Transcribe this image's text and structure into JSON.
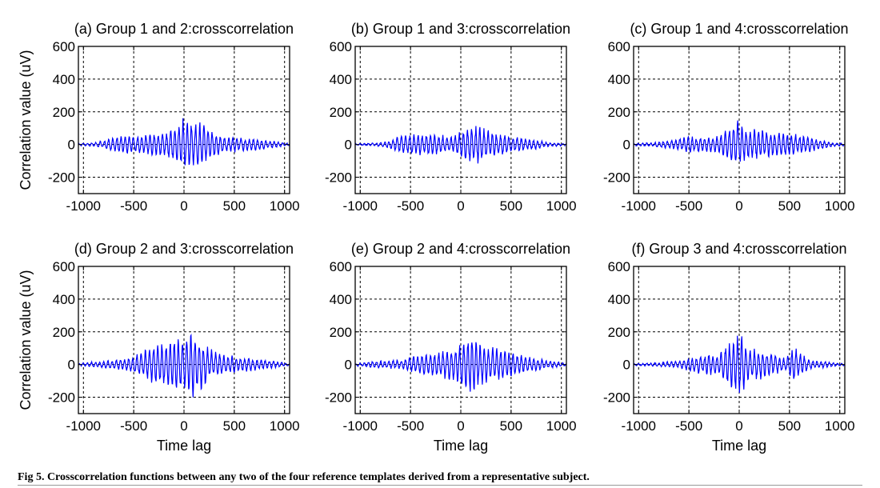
{
  "caption": "Fig 5.  Crosscorrelation functions between any two of the four reference templates derived from a representative subject.",
  "colors": {
    "trace": "#0000ff",
    "axis": "#000000",
    "grid": "#000000"
  },
  "chart_data": [
    {
      "type": "line",
      "title": "(a) Group 1 and 2:crosscorrelation",
      "xlabel": "",
      "ylabel": "Correlation value (uV)",
      "xlim": [
        -1050,
        1050
      ],
      "ylim": [
        -300,
        600
      ],
      "xticks": [
        -1000,
        -500,
        0,
        500,
        1000
      ],
      "yticks": [
        -200,
        0,
        200,
        400,
        600
      ],
      "grid": true,
      "seed": 11,
      "envelope": [
        [
          -1050,
          5
        ],
        [
          -900,
          10
        ],
        [
          -800,
          25
        ],
        [
          -650,
          55
        ],
        [
          -400,
          60
        ],
        [
          -200,
          70
        ],
        [
          -50,
          130
        ],
        [
          0,
          180
        ],
        [
          50,
          150
        ],
        [
          200,
          130
        ],
        [
          350,
          60
        ],
        [
          500,
          45
        ],
        [
          700,
          40
        ],
        [
          900,
          20
        ],
        [
          1050,
          5
        ]
      ]
    },
    {
      "type": "line",
      "title": "(b) Group 1 and 3:crosscorrelation",
      "xlabel": "",
      "ylabel": "",
      "xlim": [
        -1050,
        1050
      ],
      "ylim": [
        -300,
        600
      ],
      "xticks": [
        -1000,
        -500,
        0,
        500,
        1000
      ],
      "yticks": [
        -200,
        0,
        200,
        400,
        600
      ],
      "grid": true,
      "seed": 23,
      "envelope": [
        [
          -1050,
          5
        ],
        [
          -850,
          10
        ],
        [
          -700,
          25
        ],
        [
          -600,
          60
        ],
        [
          -300,
          70
        ],
        [
          -100,
          50
        ],
        [
          100,
          110
        ],
        [
          150,
          130
        ],
        [
          300,
          80
        ],
        [
          500,
          55
        ],
        [
          700,
          35
        ],
        [
          900,
          10
        ],
        [
          1050,
          5
        ]
      ]
    },
    {
      "type": "line",
      "title": "(c) Group 1 and 4:crosscorrelation",
      "xlabel": "",
      "ylabel": "",
      "xlim": [
        -1050,
        1050
      ],
      "ylim": [
        -300,
        600
      ],
      "xticks": [
        -1000,
        -500,
        0,
        500,
        1000
      ],
      "yticks": [
        -200,
        0,
        200,
        400,
        600
      ],
      "grid": true,
      "seed": 37,
      "envelope": [
        [
          -1050,
          5
        ],
        [
          -900,
          10
        ],
        [
          -700,
          25
        ],
        [
          -500,
          50
        ],
        [
          -200,
          50
        ],
        [
          -20,
          150
        ],
        [
          50,
          110
        ],
        [
          250,
          90
        ],
        [
          500,
          75
        ],
        [
          700,
          50
        ],
        [
          900,
          15
        ],
        [
          1050,
          5
        ]
      ]
    },
    {
      "type": "line",
      "title": "(d) Group 2 and 3:crosscorrelation",
      "xlabel": "Time lag",
      "ylabel": "Correlation value (uV)",
      "xlim": [
        -1050,
        1050
      ],
      "ylim": [
        -300,
        600
      ],
      "xticks": [
        -1000,
        -500,
        0,
        500,
        1000
      ],
      "yticks": [
        -200,
        0,
        200,
        400,
        600
      ],
      "grid": true,
      "seed": 41,
      "envelope": [
        [
          -1050,
          5
        ],
        [
          -850,
          20
        ],
        [
          -600,
          35
        ],
        [
          -450,
          70
        ],
        [
          -300,
          120
        ],
        [
          -100,
          160
        ],
        [
          50,
          190
        ],
        [
          100,
          210
        ],
        [
          250,
          100
        ],
        [
          400,
          60
        ],
        [
          600,
          45
        ],
        [
          800,
          30
        ],
        [
          1050,
          5
        ]
      ]
    },
    {
      "type": "line",
      "title": "(e) Group 2 and 4:crosscorrelation",
      "xlabel": "Time lag",
      "ylabel": "",
      "xlim": [
        -1050,
        1050
      ],
      "ylim": [
        -300,
        600
      ],
      "xticks": [
        -1000,
        -500,
        0,
        500,
        1000
      ],
      "yticks": [
        -200,
        0,
        200,
        400,
        600
      ],
      "grid": true,
      "seed": 53,
      "envelope": [
        [
          -1050,
          5
        ],
        [
          -900,
          20
        ],
        [
          -600,
          30
        ],
        [
          -450,
          60
        ],
        [
          -200,
          80
        ],
        [
          -50,
          110
        ],
        [
          100,
          190
        ],
        [
          200,
          130
        ],
        [
          400,
          100
        ],
        [
          600,
          60
        ],
        [
          800,
          35
        ],
        [
          1050,
          5
        ]
      ]
    },
    {
      "type": "line",
      "title": "(f) Group 3 and 4:crosscorrelation",
      "xlabel": "Time lag",
      "ylabel": "",
      "xlim": [
        -1050,
        1050
      ],
      "ylim": [
        -300,
        600
      ],
      "xticks": [
        -1000,
        -500,
        0,
        500,
        1000
      ],
      "yticks": [
        -200,
        0,
        200,
        400,
        600
      ],
      "grid": true,
      "seed": 67,
      "envelope": [
        [
          -1050,
          5
        ],
        [
          -850,
          10
        ],
        [
          -600,
          25
        ],
        [
          -400,
          60
        ],
        [
          -200,
          70
        ],
        [
          0,
          200
        ],
        [
          100,
          110
        ],
        [
          300,
          80
        ],
        [
          450,
          40
        ],
        [
          550,
          110
        ],
        [
          700,
          30
        ],
        [
          900,
          15
        ],
        [
          1050,
          5
        ]
      ]
    }
  ]
}
